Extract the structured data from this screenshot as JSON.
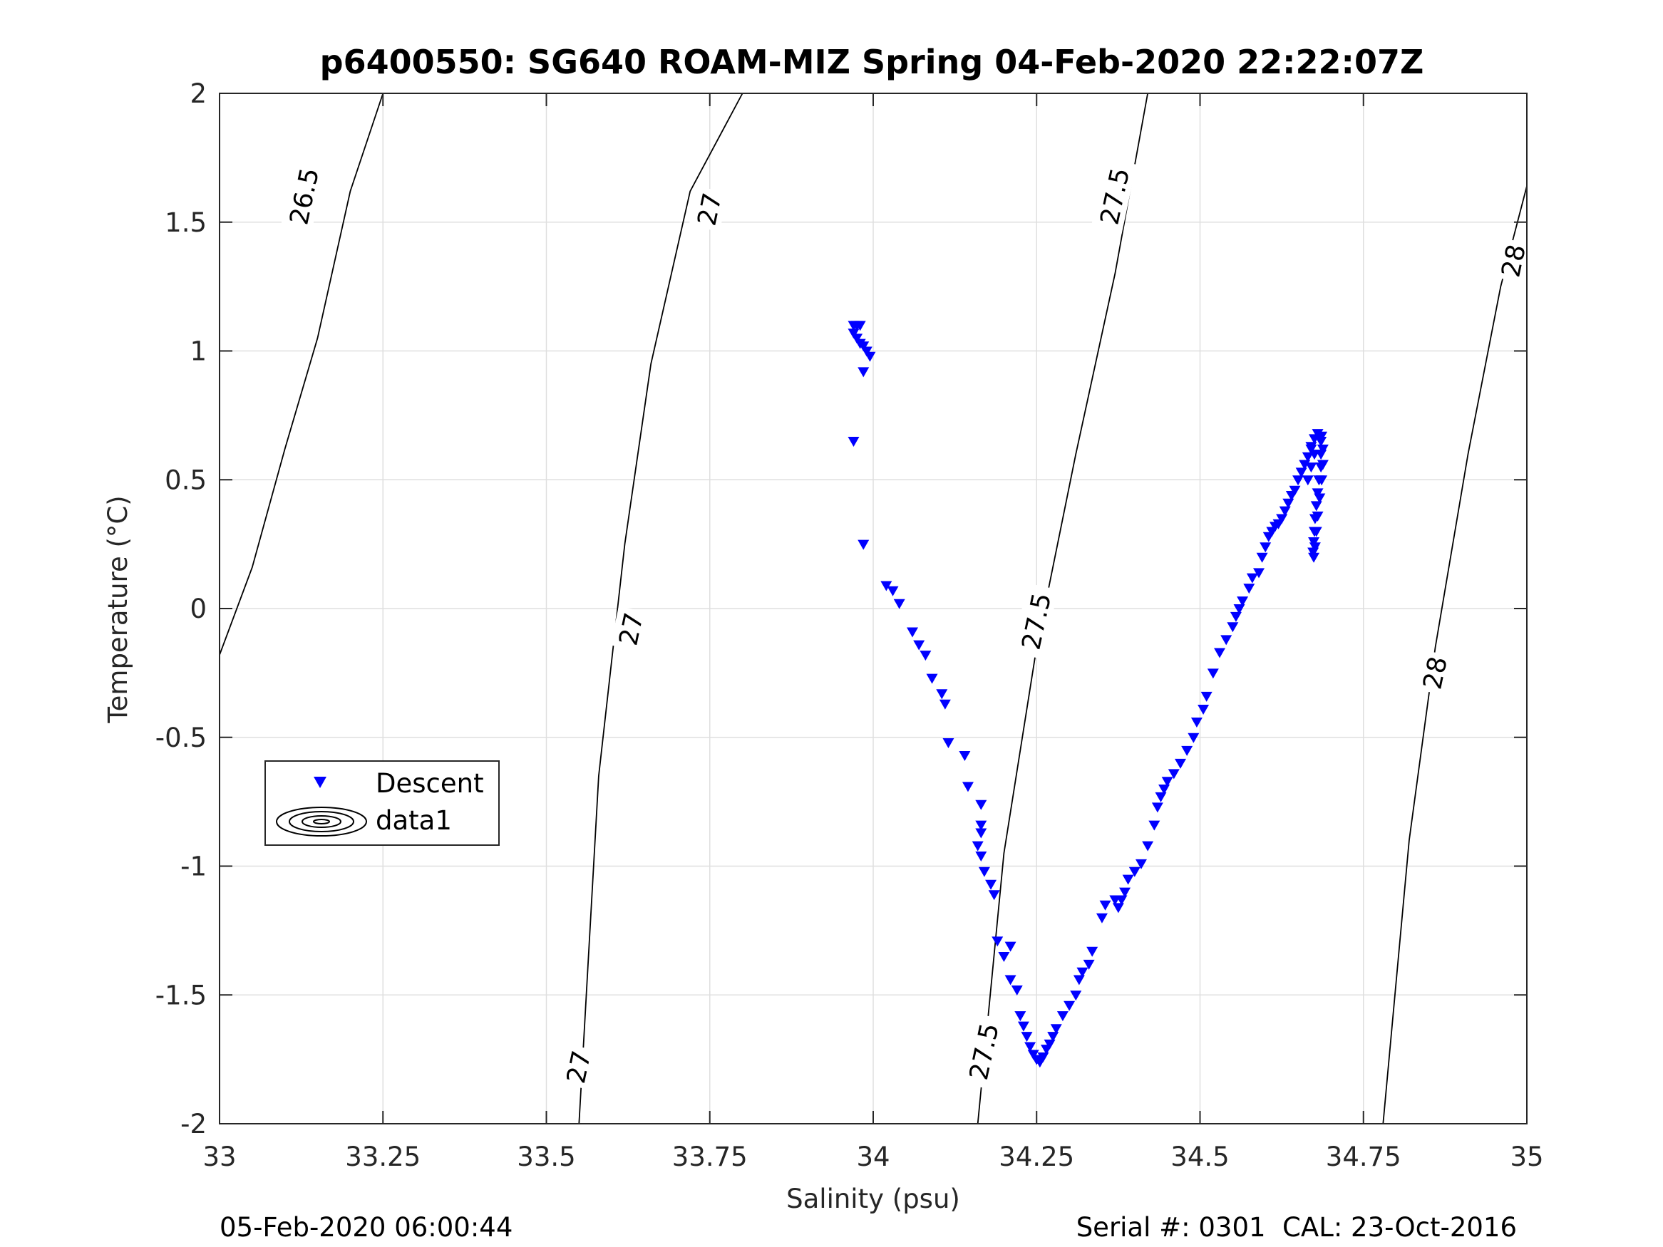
{
  "title": "p6400550: SG640 ROAM-MIZ Spring 04-Feb-2020 22:22:07Z",
  "footer": {
    "left": "05-Feb-2020 06:00:44",
    "right": "Serial #: 0301  CAL: 23-Oct-2016"
  },
  "chart_data": {
    "type": "scatter",
    "xlabel": "Salinity (psu)",
    "ylabel": "Temperature (°C)",
    "xlim": [
      33,
      35
    ],
    "ylim": [
      -2,
      2
    ],
    "xticks": [
      33,
      33.25,
      33.5,
      33.75,
      34,
      34.25,
      34.5,
      34.75,
      35
    ],
    "xtick_labels": [
      "33",
      "33.25",
      "33.5",
      "33.75",
      "34",
      "34.25",
      "34.5",
      "34.75",
      "35"
    ],
    "yticks": [
      -2,
      -1.5,
      -1,
      -0.5,
      0,
      0.5,
      1,
      1.5,
      2
    ],
    "ytick_labels": [
      "-2",
      "-1.5",
      "-1",
      "-0.5",
      "0",
      "0.5",
      "1",
      "1.5",
      "2"
    ],
    "grid": true,
    "legend": {
      "placement": "left",
      "entries": [
        "Descent",
        "data1"
      ]
    },
    "contours": [
      {
        "level": "26.5",
        "color": "#000000",
        "points": [
          [
            33.0,
            -0.18
          ],
          [
            33.05,
            0.16
          ],
          [
            33.1,
            0.62
          ],
          [
            33.15,
            1.05
          ],
          [
            33.2,
            1.62
          ],
          [
            33.25,
            2.0
          ]
        ]
      },
      {
        "level": "27",
        "color": "#000000",
        "points": [
          [
            33.55,
            -2.0
          ],
          [
            33.58,
            -0.65
          ],
          [
            33.62,
            0.25
          ],
          [
            33.66,
            0.95
          ],
          [
            33.72,
            1.62
          ],
          [
            33.8,
            2.0
          ]
        ]
      },
      {
        "level": "27.5",
        "color": "#000000",
        "points": [
          [
            34.16,
            -2.0
          ],
          [
            34.2,
            -0.95
          ],
          [
            34.25,
            -0.15
          ],
          [
            34.31,
            0.6
          ],
          [
            34.37,
            1.3
          ],
          [
            34.42,
            2.0
          ]
        ]
      },
      {
        "level": "28",
        "color": "#000000",
        "points": [
          [
            34.78,
            -2.0
          ],
          [
            34.82,
            -0.9
          ],
          [
            34.86,
            -0.15
          ],
          [
            34.91,
            0.6
          ],
          [
            34.96,
            1.25
          ],
          [
            35.0,
            1.64
          ]
        ]
      }
    ],
    "contour_labels": [
      {
        "text": "26.5",
        "x": 33.13,
        "y": 1.6
      },
      {
        "text": "27",
        "x": 33.75,
        "y": 1.55
      },
      {
        "text": "27",
        "x": 33.63,
        "y": -0.08
      },
      {
        "text": "27",
        "x": 33.55,
        "y": -1.78
      },
      {
        "text": "27.5",
        "x": 34.37,
        "y": 1.6
      },
      {
        "text": "27.5",
        "x": 34.25,
        "y": -0.05
      },
      {
        "text": "27.5",
        "x": 34.17,
        "y": -1.72
      },
      {
        "text": "28",
        "x": 34.98,
        "y": 1.35
      },
      {
        "text": "28",
        "x": 34.86,
        "y": -0.25
      }
    ],
    "series": [
      {
        "name": "Descent",
        "color": "#0000ff",
        "marker": "triangle-down",
        "points": [
          [
            33.97,
            1.1
          ],
          [
            33.975,
            1.1
          ],
          [
            33.98,
            1.1
          ],
          [
            33.97,
            1.07
          ],
          [
            33.975,
            1.05
          ],
          [
            33.98,
            1.03
          ],
          [
            33.985,
            1.02
          ],
          [
            33.99,
            1.0
          ],
          [
            33.995,
            0.98
          ],
          [
            33.985,
            0.92
          ],
          [
            33.97,
            0.65
          ],
          [
            33.985,
            0.25
          ],
          [
            34.02,
            0.09
          ],
          [
            34.03,
            0.07
          ],
          [
            34.04,
            0.02
          ],
          [
            34.06,
            -0.09
          ],
          [
            34.07,
            -0.14
          ],
          [
            34.08,
            -0.18
          ],
          [
            34.09,
            -0.27
          ],
          [
            34.105,
            -0.33
          ],
          [
            34.11,
            -0.37
          ],
          [
            34.115,
            -0.52
          ],
          [
            34.14,
            -0.57
          ],
          [
            34.145,
            -0.69
          ],
          [
            34.165,
            -0.76
          ],
          [
            34.165,
            -0.84
          ],
          [
            34.165,
            -0.87
          ],
          [
            34.16,
            -0.92
          ],
          [
            34.165,
            -0.96
          ],
          [
            34.17,
            -1.02
          ],
          [
            34.18,
            -1.07
          ],
          [
            34.185,
            -1.11
          ],
          [
            34.19,
            -1.29
          ],
          [
            34.2,
            -1.35
          ],
          [
            34.21,
            -1.31
          ],
          [
            34.21,
            -1.44
          ],
          [
            34.22,
            -1.48
          ],
          [
            34.225,
            -1.58
          ],
          [
            34.23,
            -1.62
          ],
          [
            34.235,
            -1.66
          ],
          [
            34.24,
            -1.7
          ],
          [
            34.245,
            -1.73
          ],
          [
            34.25,
            -1.75
          ],
          [
            34.255,
            -1.76
          ],
          [
            34.26,
            -1.74
          ],
          [
            34.265,
            -1.71
          ],
          [
            34.27,
            -1.69
          ],
          [
            34.275,
            -1.66
          ],
          [
            34.28,
            -1.63
          ],
          [
            34.29,
            -1.58
          ],
          [
            34.3,
            -1.54
          ],
          [
            34.31,
            -1.5
          ],
          [
            34.315,
            -1.44
          ],
          [
            34.32,
            -1.41
          ],
          [
            34.33,
            -1.38
          ],
          [
            34.335,
            -1.33
          ],
          [
            34.35,
            -1.2
          ],
          [
            34.355,
            -1.15
          ],
          [
            34.37,
            -1.13
          ],
          [
            34.375,
            -1.16
          ],
          [
            34.38,
            -1.13
          ],
          [
            34.385,
            -1.1
          ],
          [
            34.39,
            -1.05
          ],
          [
            34.4,
            -1.02
          ],
          [
            34.41,
            -0.99
          ],
          [
            34.42,
            -0.92
          ],
          [
            34.43,
            -0.84
          ],
          [
            34.435,
            -0.77
          ],
          [
            34.44,
            -0.73
          ],
          [
            34.445,
            -0.7
          ],
          [
            34.45,
            -0.67
          ],
          [
            34.46,
            -0.64
          ],
          [
            34.47,
            -0.6
          ],
          [
            34.48,
            -0.55
          ],
          [
            34.49,
            -0.5
          ],
          [
            34.495,
            -0.44
          ],
          [
            34.505,
            -0.39
          ],
          [
            34.51,
            -0.34
          ],
          [
            34.52,
            -0.25
          ],
          [
            34.53,
            -0.17
          ],
          [
            34.54,
            -0.12
          ],
          [
            34.55,
            -0.07
          ],
          [
            34.555,
            -0.03
          ],
          [
            34.56,
            0.0
          ],
          [
            34.565,
            0.03
          ],
          [
            34.575,
            0.08
          ],
          [
            34.58,
            0.12
          ],
          [
            34.59,
            0.14
          ],
          [
            34.595,
            0.2
          ],
          [
            34.6,
            0.24
          ],
          [
            34.605,
            0.28
          ],
          [
            34.61,
            0.3
          ],
          [
            34.615,
            0.32
          ],
          [
            34.62,
            0.33
          ],
          [
            34.625,
            0.35
          ],
          [
            34.63,
            0.38
          ],
          [
            34.635,
            0.41
          ],
          [
            34.64,
            0.44
          ],
          [
            34.645,
            0.46
          ],
          [
            34.65,
            0.5
          ],
          [
            34.655,
            0.53
          ],
          [
            34.66,
            0.56
          ],
          [
            34.665,
            0.59
          ],
          [
            34.67,
            0.63
          ],
          [
            34.675,
            0.66
          ],
          [
            34.68,
            0.68
          ],
          [
            34.685,
            0.65
          ],
          [
            34.685,
            0.6
          ],
          [
            34.685,
            0.55
          ],
          [
            34.682,
            0.5
          ],
          [
            34.68,
            0.45
          ],
          [
            34.678,
            0.4
          ],
          [
            34.676,
            0.35
          ],
          [
            34.675,
            0.3
          ],
          [
            34.674,
            0.26
          ],
          [
            34.673,
            0.22
          ],
          [
            34.674,
            0.2
          ],
          [
            34.676,
            0.24
          ],
          [
            34.678,
            0.3
          ],
          [
            34.68,
            0.36
          ],
          [
            34.683,
            0.43
          ],
          [
            34.686,
            0.5
          ],
          [
            34.688,
            0.56
          ],
          [
            34.688,
            0.62
          ],
          [
            34.686,
            0.67
          ],
          [
            34.67,
            0.55
          ],
          [
            34.665,
            0.5
          ],
          [
            34.67,
            0.62
          ],
          [
            34.675,
            0.6
          ]
        ]
      },
      {
        "name": "data1",
        "color": "#000000",
        "marker": "contour",
        "points": []
      }
    ]
  }
}
